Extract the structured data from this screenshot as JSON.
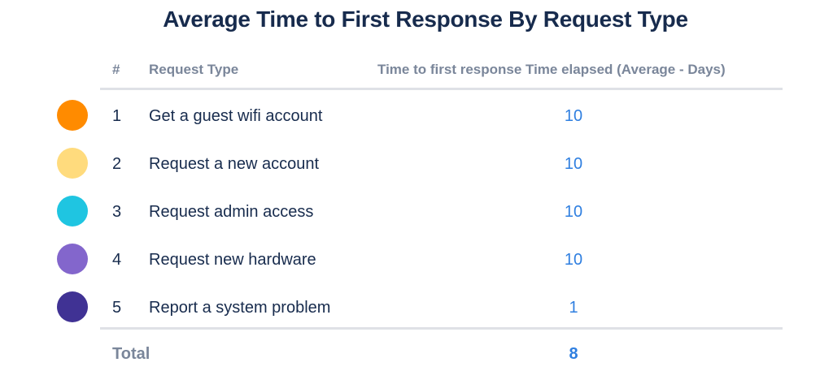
{
  "title": "Average Time to First Response By Request Type",
  "columns": {
    "number": "#",
    "request_type": "Request Type",
    "value": "Time to first response Time elapsed (Average - Days)"
  },
  "rows": [
    {
      "number": "1",
      "type": "Get a guest wifi account",
      "value": "10",
      "color": "#FF8B00"
    },
    {
      "number": "2",
      "type": "Request a new account",
      "value": "10",
      "color": "#FFDB7D"
    },
    {
      "number": "3",
      "type": "Request admin access",
      "value": "10",
      "color": "#1FC5E1"
    },
    {
      "number": "4",
      "type": "Request new hardware",
      "value": "10",
      "color": "#8366CC"
    },
    {
      "number": "5",
      "type": "Report a system problem",
      "value": "1",
      "color": "#403294"
    }
  ],
  "total": {
    "label": "Total",
    "value": "8"
  }
}
